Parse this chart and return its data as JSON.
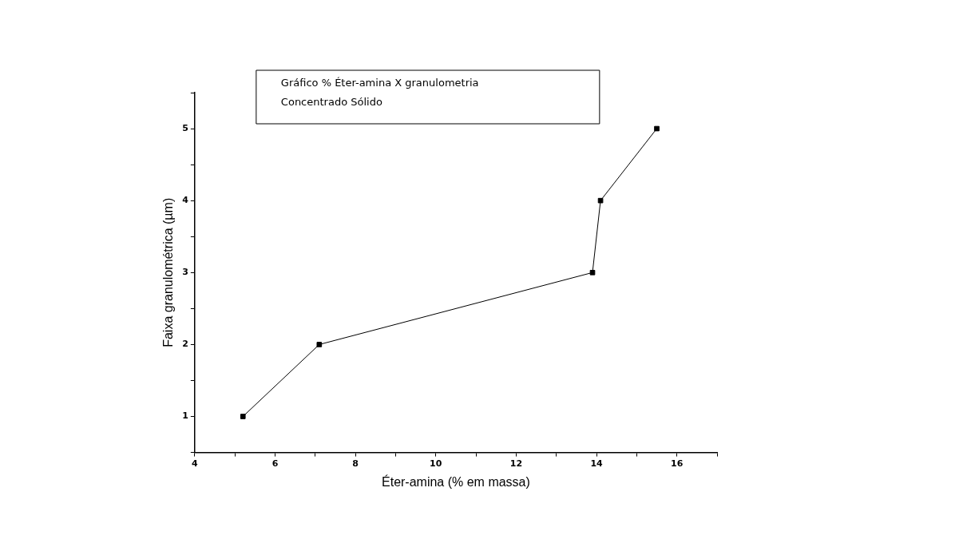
{
  "chart_data": {
    "type": "line",
    "title": "Gráfico % Éter-amina X granulometria",
    "subtitle": "Concentrado Sólido",
    "xlabel": "Éter-amina (% em massa)",
    "ylabel": "Faixa granulométrica (µm)",
    "x": [
      5.2,
      7.1,
      13.9,
      14.1,
      15.5
    ],
    "values": [
      1,
      2,
      3,
      4,
      5
    ],
    "color": "#000000",
    "marker": "square",
    "line_style": "solid",
    "grid": false,
    "legend": false,
    "xlim": [
      4,
      17
    ],
    "xticks": [
      4,
      {
        "value": 5,
        "label": null
      },
      6,
      {
        "value": 7,
        "label": null
      },
      8,
      {
        "value": 9,
        "label": null
      },
      10,
      {
        "value": 11,
        "label": null
      },
      12,
      {
        "value": 13,
        "label": null
      },
      14,
      {
        "value": 15,
        "label": null
      },
      16,
      {
        "value": 17,
        "label": null
      }
    ],
    "ylim": [
      0.5,
      5.5
    ],
    "yticks": [
      {
        "value": 0.5,
        "label": null
      },
      1,
      {
        "value": 1.5,
        "label": null
      },
      2,
      {
        "value": 2.5,
        "label": null
      },
      3,
      {
        "value": 3.5,
        "label": null
      },
      4,
      {
        "value": 4.5,
        "label": null
      },
      5,
      {
        "value": 5.5,
        "label": null
      }
    ]
  }
}
